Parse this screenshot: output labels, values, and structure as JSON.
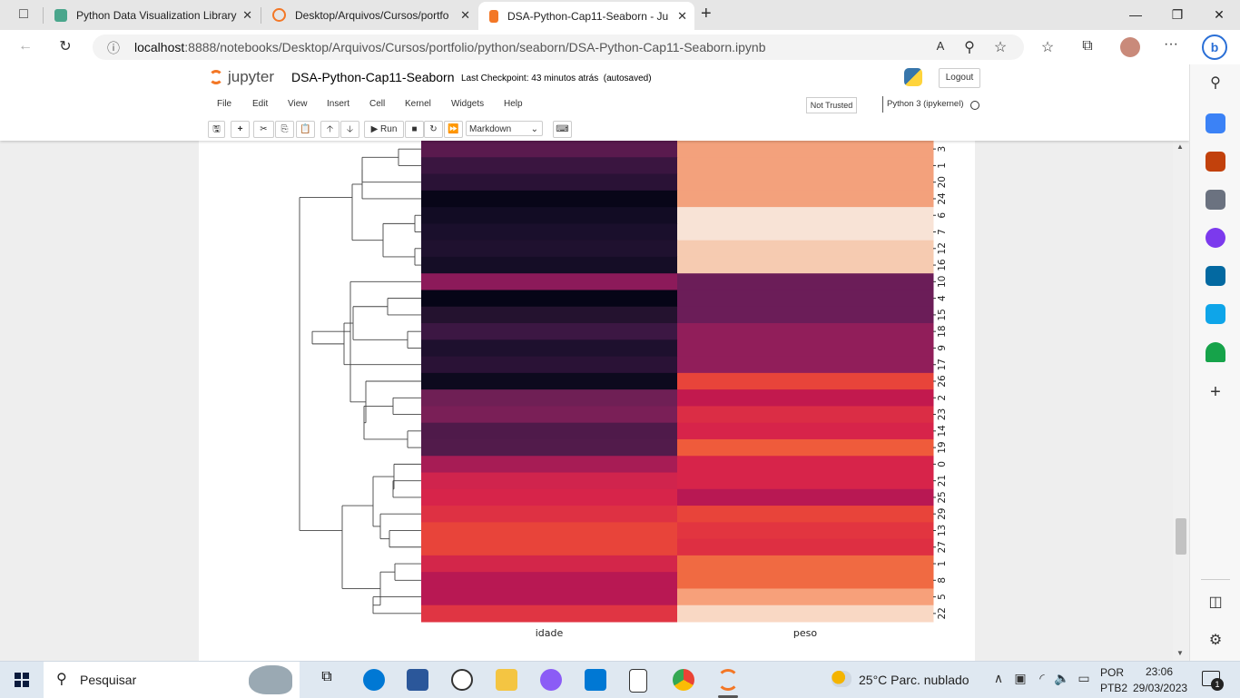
{
  "browser": {
    "tabs": [
      {
        "title": "Python Data Visualization Library",
        "active": false
      },
      {
        "title": "Desktop/Arquivos/Cursos/portfo",
        "active": false
      },
      {
        "title": "DSA-Python-Cap11-Seaborn - Ju",
        "active": true
      }
    ],
    "new_tab": "+",
    "url_host": "localhost",
    "url_rest": ":8888/notebooks/Desktop/Arquivos/Cursos/portfolio/python/seaborn/DSA-Python-Cap11-Seaborn.ipynb"
  },
  "jupyter": {
    "logo_text": "jupyter",
    "notebook_title": "DSA-Python-Cap11-Seaborn",
    "checkpoint": "Last Checkpoint: 43 minutos atrás",
    "autosaved": "(autosaved)",
    "logout": "Logout",
    "menu": [
      "File",
      "Edit",
      "View",
      "Insert",
      "Cell",
      "Kernel",
      "Widgets",
      "Help"
    ],
    "not_trusted": "Not Trusted",
    "kernel": "Python 3 (ipykernel)",
    "run_label": "Run",
    "cell_type": "Markdown"
  },
  "chart_data": {
    "type": "heatmap",
    "subtype": "clustermap",
    "columns": [
      "idade",
      "peso"
    ],
    "rows": [
      "3",
      "1",
      "20",
      "24",
      "6",
      "7",
      "12",
      "16",
      "10",
      "4",
      "15",
      "18",
      "9",
      "17",
      "26",
      "2",
      "23",
      "14",
      "19",
      "0",
      "21",
      "25",
      "29",
      "13",
      "27",
      "1",
      "8",
      "5",
      "22"
    ],
    "colormap": "rocket",
    "cell_colors": [
      [
        "#5a1a4e",
        "#f3a17c"
      ],
      [
        "#3a1540",
        "#f3a17c"
      ],
      [
        "#2a1236",
        "#f3a17c"
      ],
      [
        "#080618",
        "#f3a17c"
      ],
      [
        "#120c24",
        "#f8e3d6"
      ],
      [
        "#1a0f2c",
        "#f8e3d6"
      ],
      [
        "#1f112f",
        "#f6cbb1"
      ],
      [
        "#150d26",
        "#f6cbb1"
      ],
      [
        "#8c1a5a",
        "#6b1d58"
      ],
      [
        "#060517",
        "#6b1d58"
      ],
      [
        "#24122f",
        "#6b1d58"
      ],
      [
        "#3c1743",
        "#911e5a"
      ],
      [
        "#1e102e",
        "#911e5a"
      ],
      [
        "#2a1236",
        "#911e5a"
      ],
      [
        "#0d0a1e",
        "#e8443a"
      ],
      [
        "#6f1f55",
        "#c2194e"
      ],
      [
        "#7a1f57",
        "#db2d45"
      ],
      [
        "#4f1a4a",
        "#d7244a"
      ],
      [
        "#521b4b",
        "#ef5b3b"
      ],
      [
        "#a71c55",
        "#d7244a"
      ],
      [
        "#d0244d",
        "#d7244a"
      ],
      [
        "#d7244a",
        "#b81853"
      ],
      [
        "#de3143",
        "#e8443a"
      ],
      [
        "#e8443a",
        "#e23540"
      ],
      [
        "#e8443a",
        "#de2f42"
      ],
      [
        "#d3264a",
        "#f06a42"
      ],
      [
        "#b81853",
        "#f06a42"
      ],
      [
        "#b81853",
        "#f7a07a"
      ],
      [
        "#e03543",
        "#f9d8c4"
      ]
    ]
  },
  "taskbar": {
    "search_placeholder": "Pesquisar",
    "weather": "25°C  Parc. nublado",
    "lang": "POR",
    "layout": "PTB2",
    "time": "23:06",
    "date": "29/03/2023",
    "notification_count": "1"
  }
}
